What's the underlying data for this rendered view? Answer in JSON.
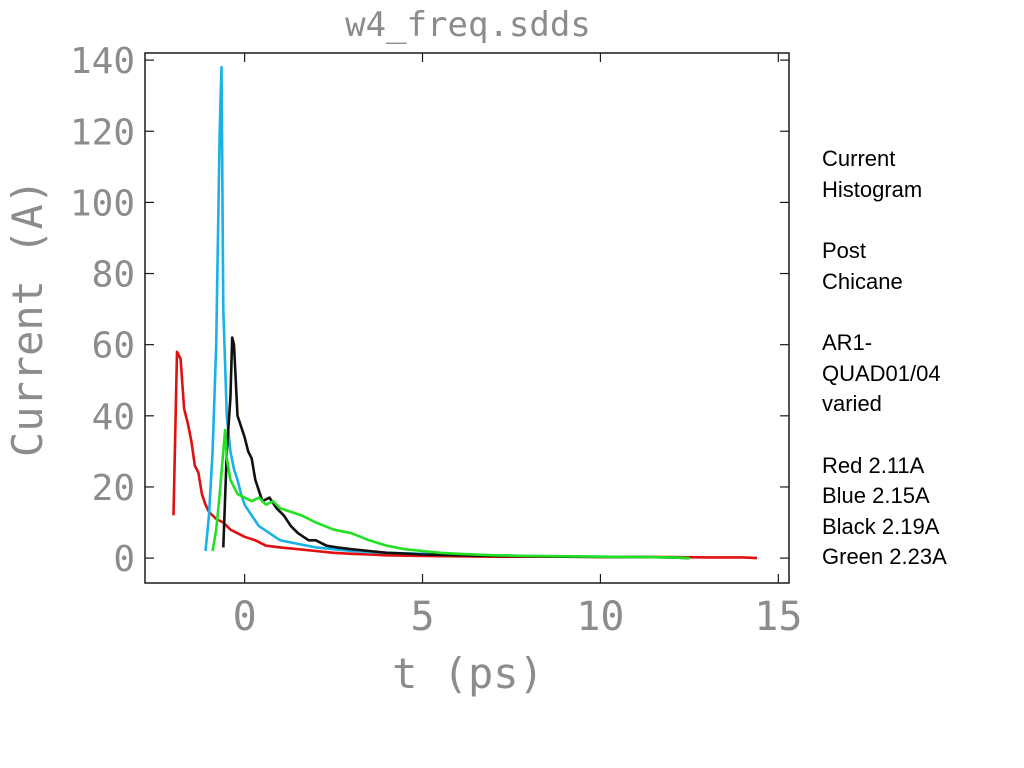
{
  "chart_data": {
    "type": "line",
    "title": "w4_freq.sdds",
    "xlabel": "t (ps)",
    "ylabel": "Current (A)",
    "xlim": [
      -2.8,
      15.3
    ],
    "ylim": [
      -7,
      142
    ],
    "xticks": [
      0,
      5,
      10,
      15
    ],
    "yticks": [
      0,
      20,
      40,
      60,
      80,
      100,
      120,
      140
    ],
    "grid": false,
    "series": [
      {
        "color": "#e01010",
        "x": [
          -2.0,
          -1.9,
          -1.8,
          -1.7,
          -1.6,
          -1.5,
          -1.4,
          -1.3,
          -1.2,
          -1.1,
          -1.0,
          -0.9,
          -0.8,
          -0.6,
          -0.4,
          -0.2,
          0.0,
          0.3,
          0.6,
          1.0,
          1.5,
          2.0,
          2.5,
          3.0,
          3.5,
          4.0,
          5.0,
          6.0,
          7.0,
          8.0,
          9.0,
          10.0,
          11.0,
          12.0,
          13.0,
          14.0,
          14.4
        ],
        "y": [
          12,
          58,
          56,
          42,
          38,
          33,
          26,
          24,
          18,
          15,
          13,
          12,
          11,
          10,
          8,
          7,
          6,
          5,
          3.5,
          3,
          2.5,
          2,
          1.5,
          1.2,
          1,
          0.8,
          0.6,
          0.5,
          0.4,
          0.4,
          0.4,
          0.3,
          0.3,
          0.3,
          0.2,
          0.2,
          0
        ]
      },
      {
        "color": "#1ab0e8",
        "x": [
          -1.1,
          -1.0,
          -0.9,
          -0.8,
          -0.7,
          -0.65,
          -0.6,
          -0.5,
          -0.4,
          -0.3,
          -0.2,
          -0.1,
          0.0,
          0.2,
          0.4,
          0.7,
          1.0,
          1.5,
          2.0,
          2.5,
          3.0,
          4.0,
          5.0,
          6.0,
          7.0,
          8.0,
          9.0,
          10.0,
          11.0,
          12.0,
          12.5
        ],
        "y": [
          2,
          12,
          30,
          60,
          120,
          138,
          70,
          40,
          30,
          25,
          22,
          18,
          15,
          12,
          9,
          7,
          5,
          4,
          3,
          2.5,
          2,
          1.5,
          1.2,
          1,
          0.8,
          0.6,
          0.5,
          0.4,
          0.3,
          0.2,
          0
        ]
      },
      {
        "color": "#111111",
        "x": [
          -0.6,
          -0.5,
          -0.4,
          -0.35,
          -0.3,
          -0.2,
          -0.1,
          0.0,
          0.1,
          0.2,
          0.3,
          0.5,
          0.7,
          0.9,
          1.1,
          1.3,
          1.5,
          1.8,
          2.0,
          2.3,
          2.6,
          3.0,
          3.5,
          4.0,
          4.5,
          5.0,
          6.0,
          7.0,
          8.0,
          9.0,
          10.0,
          11.0,
          12.0,
          12.5
        ],
        "y": [
          3,
          30,
          45,
          62,
          60,
          40,
          37,
          34,
          30,
          28,
          22,
          16,
          17,
          14,
          12,
          9,
          7,
          5,
          5,
          3.5,
          3,
          2.5,
          2,
          1.5,
          1.3,
          1,
          0.8,
          0.6,
          0.5,
          0.4,
          0.3,
          0.3,
          0.2,
          0
        ]
      },
      {
        "color": "#22e022",
        "x": [
          -0.9,
          -0.8,
          -0.7,
          -0.6,
          -0.55,
          -0.5,
          -0.4,
          -0.3,
          -0.2,
          0.0,
          0.2,
          0.4,
          0.6,
          0.8,
          1.0,
          1.3,
          1.6,
          2.0,
          2.5,
          3.0,
          3.5,
          4.0,
          4.5,
          5.0,
          5.5,
          6.0,
          7.0,
          8.0,
          9.0,
          10.0,
          11.0,
          12.0,
          12.5
        ],
        "y": [
          2,
          8,
          18,
          30,
          36,
          28,
          22,
          20,
          18,
          17,
          16,
          17,
          15,
          16,
          14,
          13,
          12,
          10,
          8,
          7,
          5,
          3.5,
          2.5,
          2,
          1.5,
          1.2,
          0.8,
          0.6,
          0.5,
          0.4,
          0.3,
          0.2,
          0
        ]
      }
    ]
  },
  "notes": {
    "line1": "Current",
    "line2": "Histogram",
    "line3": "Post",
    "line4": "Chicane",
    "line5": "AR1-",
    "line6": "QUAD01/04",
    "line7": "varied",
    "legend": [
      "Red 2.11A",
      "Blue 2.15A",
      "Black 2.19A",
      "Green 2.23A"
    ]
  }
}
